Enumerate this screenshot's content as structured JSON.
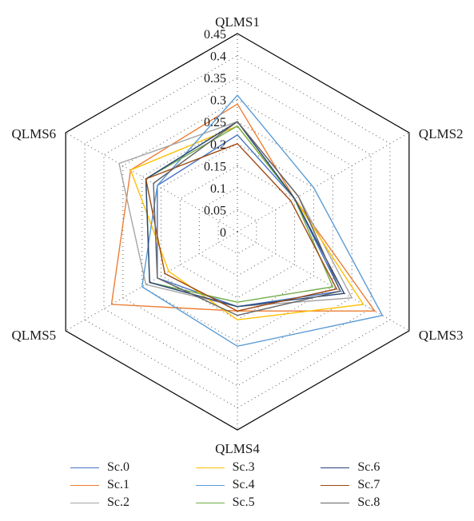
{
  "chart_data": {
    "type": "radar",
    "axes": [
      "QLMS1",
      "QLMS2",
      "QLMS3",
      "QLMS4",
      "QLMS5",
      "QLMS6"
    ],
    "rlim": [
      0,
      0.45
    ],
    "ticks": [
      "0",
      "0.05",
      "0.1",
      "0.15",
      "0.2",
      "0.25",
      "0.3",
      "0.35",
      "0.4",
      "0.45"
    ],
    "grid": "dotted",
    "legend_position": "bottom",
    "series": [
      {
        "name": "Sc.0",
        "color": "#4472C4",
        "values": [
          0.22,
          0.15,
          0.27,
          0.17,
          0.21,
          0.21
        ]
      },
      {
        "name": "Sc.1",
        "color": "#ED7D31",
        "values": [
          0.29,
          0.15,
          0.36,
          0.18,
          0.33,
          0.28
        ]
      },
      {
        "name": "Sc.2",
        "color": "#A5A5A5",
        "values": [
          0.25,
          0.16,
          0.3,
          0.17,
          0.24,
          0.31
        ]
      },
      {
        "name": "Sc.3",
        "color": "#FFC000",
        "values": [
          0.24,
          0.15,
          0.33,
          0.2,
          0.18,
          0.28
        ]
      },
      {
        "name": "Sc.4",
        "color": "#5B9BD5",
        "values": [
          0.31,
          0.2,
          0.38,
          0.26,
          0.25,
          0.21
        ]
      },
      {
        "name": "Sc.5",
        "color": "#70AD47",
        "values": [
          0.24,
          0.15,
          0.25,
          0.16,
          0.23,
          0.24
        ]
      },
      {
        "name": "Sc.6",
        "color": "#264478",
        "values": [
          0.25,
          0.15,
          0.28,
          0.17,
          0.23,
          0.24
        ]
      },
      {
        "name": "Sc.7",
        "color": "#9E480E",
        "values": [
          0.2,
          0.14,
          0.26,
          0.18,
          0.19,
          0.24
        ]
      },
      {
        "name": "Sc.8",
        "color": "#636363",
        "values": [
          0.25,
          0.16,
          0.27,
          0.19,
          0.21,
          0.22
        ]
      }
    ]
  }
}
